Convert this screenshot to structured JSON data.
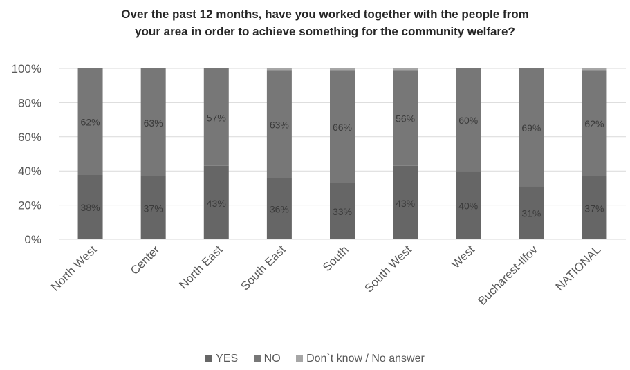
{
  "chart_data": {
    "type": "bar",
    "stacked": true,
    "title_lines": [
      "Over the past 12 months, have you worked together with the people from",
      "your area in order to achieve something for the community welfare?"
    ],
    "categories": [
      "North West",
      "Center",
      "North East",
      "South East",
      "South",
      "South West",
      "West",
      "Bucharest-Ilfov",
      "NATIONAL"
    ],
    "series": [
      {
        "name": "YES",
        "color": "#666666",
        "values": [
          38,
          37,
          43,
          36,
          33,
          43,
          40,
          31,
          37
        ]
      },
      {
        "name": "NO",
        "color": "#777777",
        "values": [
          62,
          63,
          57,
          63,
          66,
          56,
          60,
          69,
          62
        ]
      },
      {
        "name": "Don`t know / No answer",
        "color": "#a6a6a6",
        "values": [
          0,
          0,
          0,
          1,
          1,
          1,
          0,
          0,
          1
        ]
      }
    ],
    "data_labels": {
      "YES": [
        "38%",
        "37%",
        "43%",
        "36%",
        "33%",
        "43%",
        "40%",
        "31%",
        "37%"
      ],
      "NO": [
        "62%",
        "63%",
        "57%",
        "63%",
        "66%",
        "56%",
        "60%",
        "69%",
        "62%"
      ]
    },
    "y_ticks": [
      "0%",
      "20%",
      "40%",
      "60%",
      "80%",
      "100%"
    ],
    "ylim": [
      0,
      100
    ],
    "grid": true,
    "legend_position": "bottom"
  }
}
